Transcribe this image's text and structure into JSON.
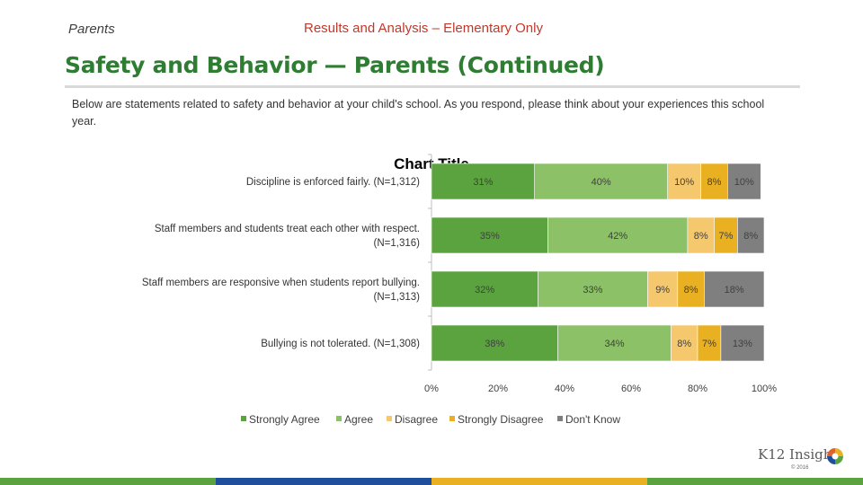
{
  "header": {
    "section": "Parents",
    "subtitle": "Results and Analysis – Elementary Only"
  },
  "page_title": "Safety and Behavior — Parents (Continued)",
  "intro": "Below are statements related to safety and behavior at your child's school. As you respond, please think about your experiences this school year.",
  "chart_data": {
    "type": "bar",
    "orientation": "horizontal",
    "stacked": true,
    "title": "Chart Title",
    "categories": [
      "Discipline is enforced fairly. (N=1,312)",
      "Staff members and students treat each other with respect. (N=1,316)",
      "Staff members are responsive when students report bullying. (N=1,313)",
      "Bullying is not tolerated. (N=1,308)"
    ],
    "category_lines": [
      [
        "Discipline is enforced fairly. (N=1,312)"
      ],
      [
        "Staff members and students treat each other with respect.",
        "(N=1,316)"
      ],
      [
        "Staff members are responsive when students report bullying.",
        "(N=1,313)"
      ],
      [
        "Bullying is not tolerated. (N=1,308)"
      ]
    ],
    "series": [
      {
        "name": "Strongly Agree",
        "values": [
          31,
          35,
          32,
          38
        ],
        "color": "#5aa33f"
      },
      {
        "name": "Agree",
        "values": [
          40,
          42,
          33,
          34
        ],
        "color": "#8cc168"
      },
      {
        "name": "Disagree",
        "values": [
          10,
          8,
          9,
          8
        ],
        "color": "#f6c86e"
      },
      {
        "name": "Strongly Disagree",
        "values": [
          8,
          7,
          8,
          7
        ],
        "color": "#e9b022"
      },
      {
        "name": "Don't Know",
        "values": [
          10,
          8,
          18,
          13
        ],
        "color": "#7f7f7f"
      }
    ],
    "xlim": [
      0,
      100
    ],
    "xticks": [
      0,
      20,
      40,
      60,
      80,
      100
    ],
    "tick_suffix": "%",
    "legend_position": "bottom"
  },
  "footer": {
    "colors": [
      "#5aa33f",
      "#1f4e9c",
      "#e9b022",
      "#5aa33f"
    ],
    "logo_text": "K12 Insight",
    "copyright": "© 2016"
  }
}
